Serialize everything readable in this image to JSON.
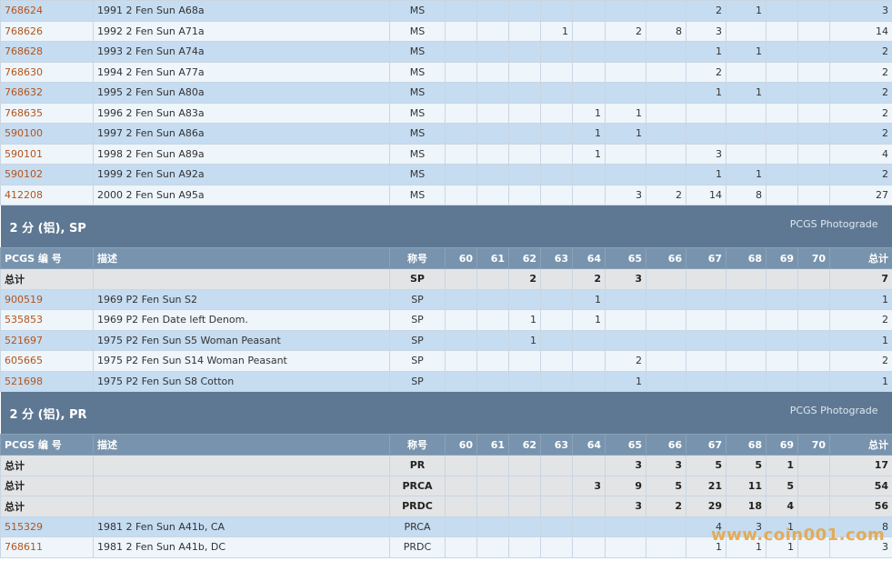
{
  "columns": [
    "PCGS 编 号",
    "描述",
    "称号",
    "60",
    "61",
    "62",
    "63",
    "64",
    "65",
    "66",
    "67",
    "68",
    "69",
    "70",
    "总计"
  ],
  "top_rows": [
    {
      "id": "768624",
      "desc": "1991 2 Fen Sun A68a",
      "desig": "MS",
      "counts": [
        "",
        "",
        "",
        "",
        "",
        "",
        "",
        "2",
        "1",
        "",
        "",
        "3"
      ]
    },
    {
      "id": "768626",
      "desc": "1992 2 Fen Sun A71a",
      "desig": "MS",
      "counts": [
        "",
        "",
        "",
        "1",
        "",
        "2",
        "8",
        "3",
        "",
        "",
        "",
        "14"
      ]
    },
    {
      "id": "768628",
      "desc": "1993 2 Fen Sun A74a",
      "desig": "MS",
      "counts": [
        "",
        "",
        "",
        "",
        "",
        "",
        "",
        "1",
        "1",
        "",
        "",
        "2"
      ]
    },
    {
      "id": "768630",
      "desc": "1994 2 Fen Sun A77a",
      "desig": "MS",
      "counts": [
        "",
        "",
        "",
        "",
        "",
        "",
        "",
        "2",
        "",
        "",
        "",
        "2"
      ]
    },
    {
      "id": "768632",
      "desc": "1995 2 Fen Sun A80a",
      "desig": "MS",
      "counts": [
        "",
        "",
        "",
        "",
        "",
        "",
        "",
        "1",
        "1",
        "",
        "",
        "2"
      ]
    },
    {
      "id": "768635",
      "desc": "1996 2 Fen Sun A83a",
      "desig": "MS",
      "counts": [
        "",
        "",
        "",
        "",
        "1",
        "1",
        "",
        "",
        "",
        "",
        "",
        "2"
      ]
    },
    {
      "id": "590100",
      "desc": "1997 2 Fen Sun A86a",
      "desig": "MS",
      "counts": [
        "",
        "",
        "",
        "",
        "1",
        "1",
        "",
        "",
        "",
        "",
        "",
        "2"
      ]
    },
    {
      "id": "590101",
      "desc": "1998 2 Fen Sun A89a",
      "desig": "MS",
      "counts": [
        "",
        "",
        "",
        "",
        "1",
        "",
        "",
        "3",
        "",
        "",
        "",
        "4"
      ]
    },
    {
      "id": "590102",
      "desc": "1999 2 Fen Sun A92a",
      "desig": "MS",
      "counts": [
        "",
        "",
        "",
        "",
        "",
        "",
        "",
        "1",
        "1",
        "",
        "",
        "2"
      ]
    },
    {
      "id": "412208",
      "desc": "2000 2 Fen Sun A95a",
      "desig": "MS",
      "counts": [
        "",
        "",
        "",
        "",
        "",
        "3",
        "2",
        "14",
        "8",
        "",
        "",
        "27"
      ]
    }
  ],
  "sections": [
    {
      "title": "2 分 (铝), SP",
      "photo_link": "PCGS Photograde",
      "totals": [
        {
          "label": "总计",
          "desig": "SP",
          "counts": [
            "",
            "",
            "2",
            "",
            "2",
            "3",
            "",
            "",
            "",
            "",
            "",
            "7"
          ]
        }
      ],
      "rows": [
        {
          "id": "900519",
          "desc": "1969 P2 Fen Sun S2",
          "desig": "SP",
          "counts": [
            "",
            "",
            "",
            "",
            "1",
            "",
            "",
            "",
            "",
            "",
            "",
            "1"
          ]
        },
        {
          "id": "535853",
          "desc": "1969 P2 Fen Date left Denom.",
          "desig": "SP",
          "counts": [
            "",
            "",
            "1",
            "",
            "1",
            "",
            "",
            "",
            "",
            "",
            "",
            "2"
          ]
        },
        {
          "id": "521697",
          "desc": "1975 P2 Fen Sun S5   Woman Peasant",
          "desig": "SP",
          "counts": [
            "",
            "",
            "1",
            "",
            "",
            "",
            "",
            "",
            "",
            "",
            "",
            "1"
          ]
        },
        {
          "id": "605665",
          "desc": "1975 P2 Fen Sun S14   Woman Peasant",
          "desig": "SP",
          "counts": [
            "",
            "",
            "",
            "",
            "",
            "2",
            "",
            "",
            "",
            "",
            "",
            "2"
          ]
        },
        {
          "id": "521698",
          "desc": "1975 P2 Fen Sun S8   Cotton",
          "desig": "SP",
          "counts": [
            "",
            "",
            "",
            "",
            "",
            "1",
            "",
            "",
            "",
            "",
            "",
            "1"
          ]
        }
      ]
    },
    {
      "title": "2 分 (铝), PR",
      "photo_link": "PCGS Photograde",
      "totals": [
        {
          "label": "总计",
          "desig": "PR",
          "counts": [
            "",
            "",
            "",
            "",
            "",
            "3",
            "3",
            "5",
            "5",
            "1",
            "",
            "17"
          ]
        },
        {
          "label": "总计",
          "desig": "PRCA",
          "counts": [
            "",
            "",
            "",
            "",
            "3",
            "9",
            "5",
            "21",
            "11",
            "5",
            "",
            "54"
          ]
        },
        {
          "label": "总计",
          "desig": "PRDC",
          "counts": [
            "",
            "",
            "",
            "",
            "",
            "3",
            "2",
            "29",
            "18",
            "4",
            "",
            "56"
          ]
        }
      ],
      "rows": [
        {
          "id": "515329",
          "desc": "1981 2 Fen Sun A41b, CA",
          "desig": "PRCA",
          "counts": [
            "",
            "",
            "",
            "",
            "",
            "",
            "",
            "4",
            "3",
            "1",
            "",
            "8"
          ]
        },
        {
          "id": "768611",
          "desc": "1981 2 Fen Sun A41b, DC",
          "desig": "PRDC",
          "counts": [
            "",
            "",
            "",
            "",
            "",
            "",
            "",
            "1",
            "1",
            "1",
            "",
            "3"
          ]
        }
      ]
    }
  ],
  "watermark": "www.coin001.com"
}
